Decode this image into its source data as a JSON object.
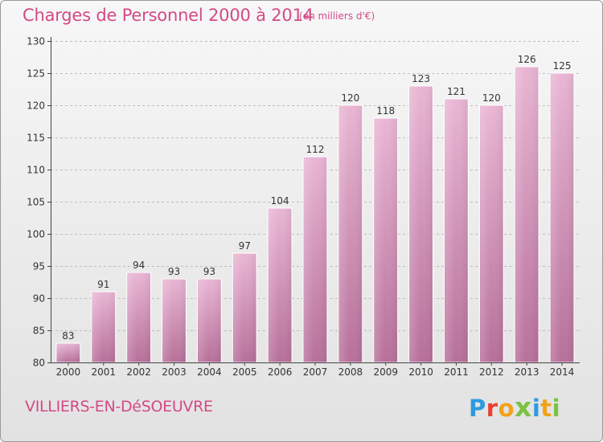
{
  "header": {
    "title": "Charges de Personnel 2000 à 2014",
    "subtitle": "(en milliers d'€)"
  },
  "footer": {
    "commune": "VILLIERS-EN-DéSOEUVRE",
    "logo_text": "Proxiti",
    "logo_colors": [
      "#2e9be0",
      "#e8402f",
      "#f2a21b",
      "#7cc242",
      "#2e9be0",
      "#f2a21b",
      "#7cc242"
    ]
  },
  "colors": {
    "bar_top": "#e9b6d4",
    "bar_bottom": "#b7709a",
    "bar_edge": "#ffffff",
    "grid": "#bdbdbd",
    "axis": "#444444",
    "text": "#333333",
    "accent": "#d34a86"
  },
  "chart_data": {
    "type": "bar",
    "title": "Charges de Personnel 2000 à 2014",
    "subtitle": "(en milliers d'€)",
    "categories": [
      "2000",
      "2001",
      "2002",
      "2003",
      "2004",
      "2005",
      "2006",
      "2007",
      "2008",
      "2009",
      "2010",
      "2011",
      "2012",
      "2013",
      "2014"
    ],
    "values": [
      83,
      91,
      94,
      93,
      93,
      97,
      104,
      112,
      120,
      118,
      123,
      121,
      120,
      126,
      125
    ],
    "ylim": [
      80,
      130
    ],
    "yticks": [
      80,
      85,
      90,
      95,
      100,
      105,
      110,
      115,
      120,
      125,
      130
    ],
    "grid": true,
    "data_labels": true
  }
}
